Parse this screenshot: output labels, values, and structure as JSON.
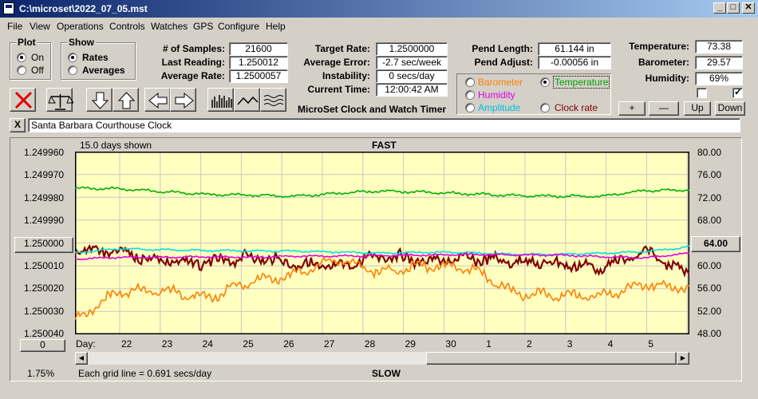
{
  "window": {
    "title": "C:\\microset\\2022_07_05.mst"
  },
  "menu": [
    "File",
    "View",
    "Operations",
    "Controls",
    "Watches",
    "GPS",
    "Configure",
    "Help"
  ],
  "plot_group": {
    "title": "Plot",
    "on": "On",
    "off": "Off",
    "selected": "On"
  },
  "show_group": {
    "title": "Show",
    "rates": "Rates",
    "averages": "Averages",
    "selected": "Rates"
  },
  "stats": {
    "samples_label": "# of Samples:",
    "samples": "21600",
    "last_label": "Last Reading:",
    "last": "1.250012",
    "avg_label": "Average Rate:",
    "avg": "1.2500057",
    "target_label": "Target Rate:",
    "target": "1.2500000",
    "avgerr_label": "Average Error:",
    "avgerr": "-2.7 sec/week",
    "instab_label": "Instability:",
    "instab": "0 secs/day",
    "time_label": "Current Time:",
    "time": "12:00:42 AM",
    "pendlen_label": "Pend Length:",
    "pendlen": "61.144 in",
    "pendadj_label": "Pend Adjust:",
    "pendadj": "-0.00056 in",
    "temp_label": "Temperature:",
    "temp": "73.38",
    "baro_label": "Barometer:",
    "baro": "29.57",
    "hum_label": "Humidity:",
    "hum": "69%"
  },
  "app_title": "MicroSet Clock and Watch Timer",
  "sensor_select": {
    "barometer": "Barometer",
    "temperature": "Temperature",
    "humidity": "Humidity",
    "amplitude": "Amplitude",
    "clock_rate": "Clock rate",
    "selected": "Temperature",
    "colors": {
      "barometer": "#ff8000",
      "temperature": "#00a000",
      "humidity": "#e000e0",
      "amplitude": "#00c0e0",
      "clock_rate": "#800000"
    }
  },
  "right_buttons": {
    "plus": "+",
    "minus": "—",
    "up": "Up",
    "down": "Down"
  },
  "clock_name": "Santa Barbara Courthouse Clock",
  "clear_button": "X",
  "chart": {
    "days_shown": "15.0 days shown",
    "top_label": "FAST",
    "bottom_label": "SLOW",
    "grid_note": "Each grid line = 0.691 secs/day",
    "left_center_button": "1.250000",
    "right_center_button": "64.00",
    "bottom_left_button": "0",
    "percent": "1.75%",
    "day_label": "Day:"
  },
  "chart_data": {
    "type": "line",
    "x_label": "Day:",
    "x_ticks": [
      "22",
      "23",
      "24",
      "25",
      "26",
      "27",
      "28",
      "29",
      "30",
      "1",
      "2",
      "3",
      "4",
      "5"
    ],
    "y_left_ticks": [
      "1.249960",
      "1.249970",
      "1.249980",
      "1.249990",
      "1.250000",
      "1.250010",
      "1.250020",
      "1.250030",
      "1.250040"
    ],
    "y_left_range": [
      1.24996,
      1.25004
    ],
    "y_left_inverted": true,
    "y_right_ticks": [
      "80.00",
      "76.00",
      "72.00",
      "68.00",
      "64.00",
      "60.00",
      "56.00",
      "52.00",
      "48.00"
    ],
    "y_right_range": [
      48,
      80
    ],
    "grid": true,
    "background": "#ffffc0",
    "series": [
      {
        "color": "#00b000",
        "axis": "right",
        "approx_values": [
          73.6,
          73.5,
          73.0,
          72.5,
          72.4,
          72.2,
          72.7,
          73.1,
          72.9,
          72.6,
          72.3,
          72.2,
          72.2,
          73.2,
          73.3
        ]
      },
      {
        "color": "#800000",
        "axis": "left",
        "approx_values": [
          1.250003,
          1.250004,
          1.250008,
          1.250009,
          1.250006,
          1.250009,
          1.250011,
          1.250005,
          1.250008,
          1.250007,
          1.250008,
          1.250009,
          1.250011,
          1.250004,
          1.250013
        ]
      },
      {
        "color": "#00e0e0",
        "axis": "right",
        "approx_values": [
          62.3,
          63.0,
          62.8,
          62.7,
          62.6,
          62.6,
          62.4,
          62.2,
          62.4,
          62.3,
          62.0,
          62.0,
          62.2,
          62.5,
          63.3
        ]
      },
      {
        "color": "#e000e0",
        "axis": "right",
        "approx_values": [
          61.2,
          61.5,
          61.5,
          61.6,
          61.5,
          61.7,
          61.7,
          61.8,
          61.9,
          62.0,
          61.9,
          61.9,
          61.6,
          61.4,
          62.2
        ]
      },
      {
        "color": "#ff8000",
        "axis": "left",
        "approx_values": [
          1.250034,
          1.250021,
          1.250021,
          1.250024,
          1.250017,
          1.250014,
          1.250007,
          1.250013,
          1.25001,
          1.250011,
          1.250022,
          1.250023,
          1.250023,
          1.250018,
          1.25002
        ]
      }
    ]
  }
}
